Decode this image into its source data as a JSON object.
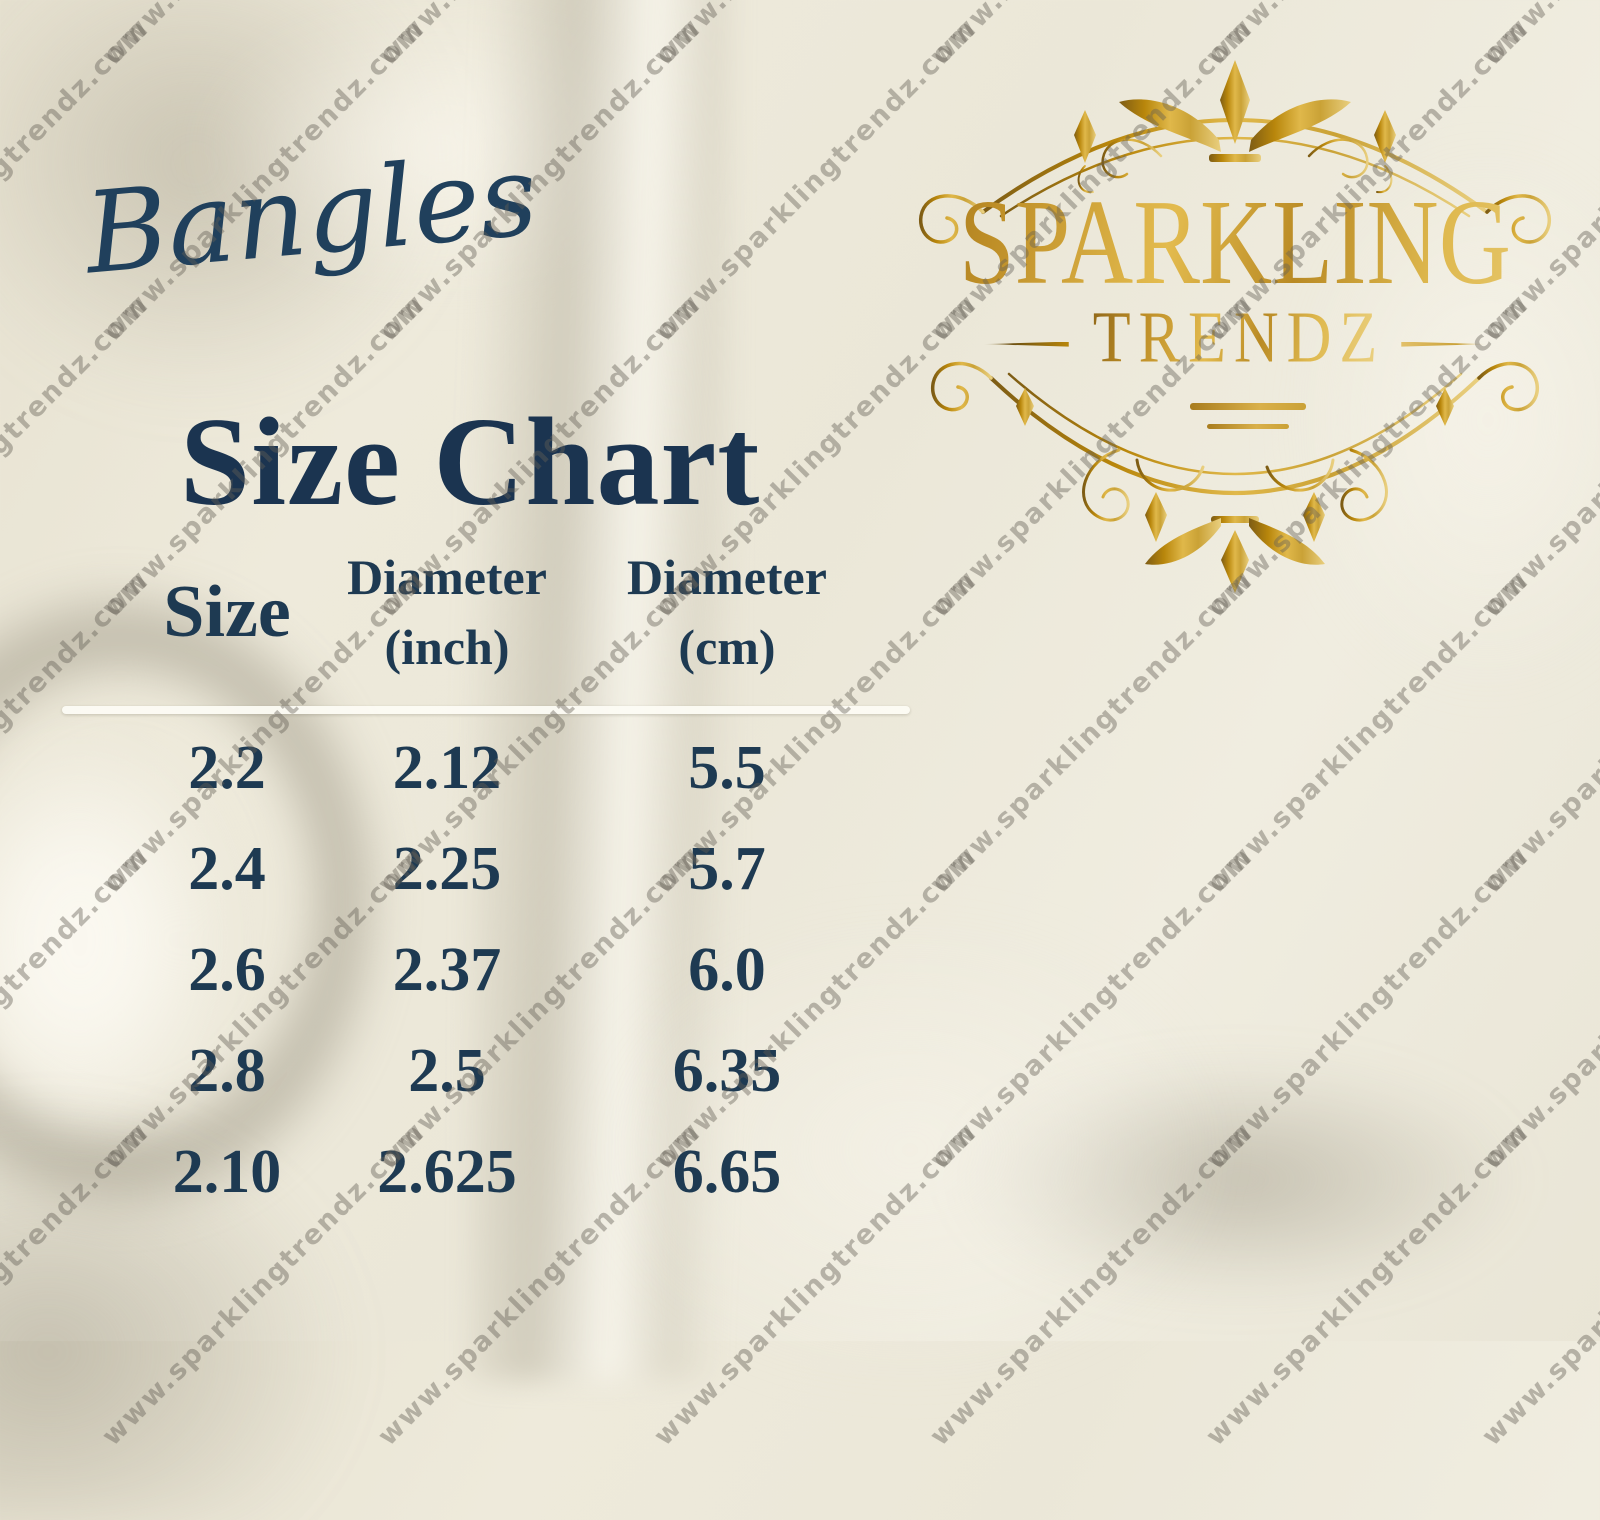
{
  "heading": {
    "script": "Bangles",
    "title": "Size Chart"
  },
  "logo": {
    "word1": "SPARKLING",
    "word2": "TRENDZ"
  },
  "watermark": {
    "text": "www.sparklingtrendz.com"
  },
  "size_table": {
    "headers": [
      {
        "line1": "Size",
        "line2": ""
      },
      {
        "line1": "Diameter",
        "line2": "(inch)"
      },
      {
        "line1": "Diameter",
        "line2": "(cm)"
      }
    ],
    "rows": [
      [
        "2.2",
        "2.12",
        "5.5"
      ],
      [
        "2.4",
        "2.25",
        "5.7"
      ],
      [
        "2.6",
        "2.37",
        "6.0"
      ],
      [
        "2.8",
        "2.5",
        "6.35"
      ],
      [
        "2.10",
        "2.625",
        "6.65"
      ]
    ]
  },
  "colors": {
    "background": "#ece8da",
    "navy_text": "#1e3a52",
    "gold": "#c89a33",
    "gold_dark": "#8a6318",
    "gold_light": "#ecd489",
    "divider": "#fdfcf5",
    "watermark": "rgba(100,95,85,0.42)"
  }
}
